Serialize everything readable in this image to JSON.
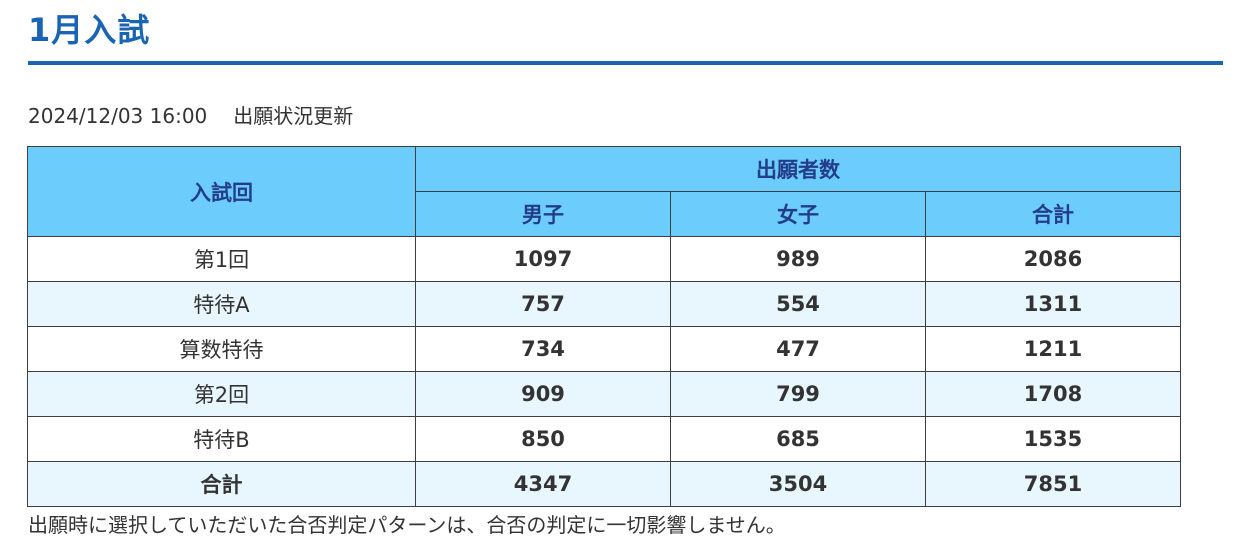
{
  "page": {
    "title": "1月入試",
    "updated": "2024/12/03 16:00",
    "update_label": "出願状況更新",
    "note": "出願時に選択していただいた合否判定パターンは、合否の判定に一切影響しません。"
  },
  "table": {
    "header_round": "入試回",
    "header_applicants": "出願者数",
    "columns": [
      "男子",
      "女子",
      "合計"
    ],
    "rows": [
      {
        "name": "第1回",
        "male": "1097",
        "female": "989",
        "total": "2086"
      },
      {
        "name": "特待A",
        "male": "757",
        "female": "554",
        "total": "1311"
      },
      {
        "name": "算数特待",
        "male": "734",
        "female": "477",
        "total": "1211"
      },
      {
        "name": "第2回",
        "male": "909",
        "female": "799",
        "total": "1708"
      },
      {
        "name": "特待B",
        "male": "850",
        "female": "685",
        "total": "1535"
      },
      {
        "name": "合計",
        "male": "4347",
        "female": "3504",
        "total": "7851"
      }
    ]
  },
  "colors": {
    "accent": "#1a64b4",
    "header_bg": "#6ccdfd",
    "header_text": "#243d8a",
    "alt_row_bg": "#e8f7fd"
  }
}
